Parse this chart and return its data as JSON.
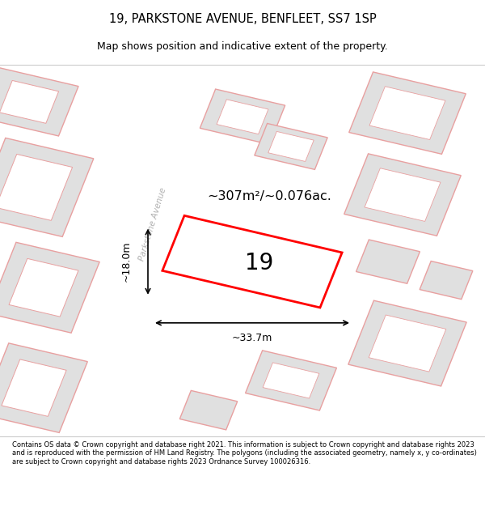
{
  "title": "19, PARKSTONE AVENUE, BENFLEET, SS7 1SP",
  "subtitle": "Map shows position and indicative extent of the property.",
  "footer": "Contains OS data © Crown copyright and database right 2021. This information is subject to Crown copyright and database rights 2023 and is reproduced with the permission of HM Land Registry. The polygons (including the associated geometry, namely x, y co-ordinates) are subject to Crown copyright and database rights 2023 Ordnance Survey 100026316.",
  "area_label": "~307m²/~0.076ac.",
  "width_label": "~33.7m",
  "height_label": "~18.0m",
  "number_label": "19",
  "road_label": "Parkstone Avenue",
  "map_bg": "#f2f2f2",
  "highlight_color": "#ff0000",
  "highlight_fill": "#ffffff",
  "building_fill": "#e0e0e0",
  "building_edge": "#e8a0a0",
  "road_color": "#ffffff"
}
